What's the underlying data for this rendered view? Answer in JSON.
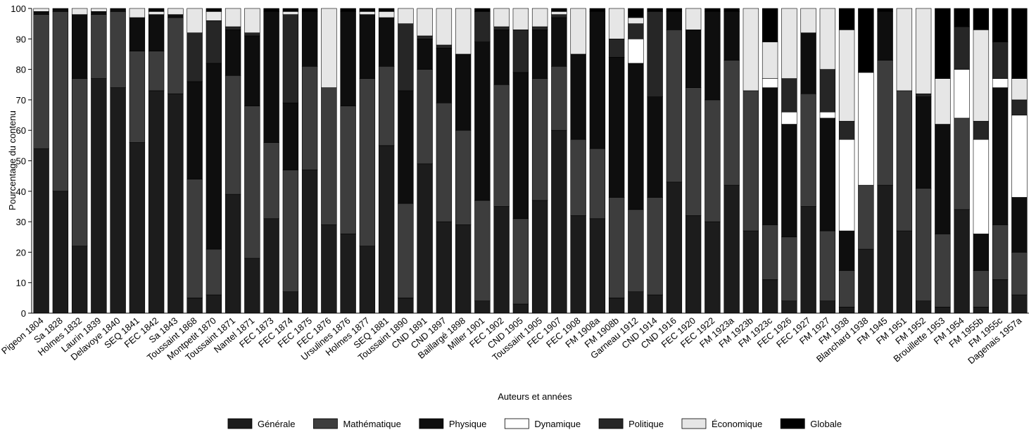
{
  "chart_data": {
    "type": "stacked_bar",
    "y_label": "Pourcentage du contenu",
    "x_label": "Auteurs et années",
    "categories": [
      "Pigeon 1804",
      "Sa 1828",
      "Holmes 1832",
      "Laurin 1839",
      "Delavoye 1840",
      "SEQ 1841",
      "FEC 1842",
      "Sa 1843",
      "Toussaint 1868",
      "Montpetit 1870",
      "Toussaint 1871",
      "Nantel 1871",
      "FEC 1873",
      "FEC 1874",
      "FEC 1875",
      "FEC 1876",
      "Ursulines 1876",
      "Holmes 1877",
      "SEQ 1881",
      "Toussaint 1890",
      "CND 1891",
      "CND 1897",
      "Baillargé 1898",
      "Miller 1901",
      "FEC 1902",
      "CND 1905",
      "Toussaint 1905",
      "FEC 1907",
      "FEC 1908",
      "FM 1908a",
      "FM 1908b",
      "Garneau 1912",
      "CND 1914",
      "CND 1916",
      "FEC 1920",
      "FEC 1922",
      "FM 1923a",
      "FM 1923b",
      "FM 1923c",
      "FEC 1926",
      "FEC 1927",
      "FM 1927",
      "FM 1938",
      "Blanchard 1938",
      "FM 1945",
      "FM 1951",
      "FM 1952",
      "Brouillette 1953",
      "FM 1954",
      "FM 1955b",
      "FM 1955c",
      "Dagenais 1957a"
    ],
    "series": [
      {
        "name": "Générale",
        "color": "#1c1c1c",
        "values": [
          54,
          40,
          22,
          77,
          74,
          56,
          73,
          72,
          5,
          6,
          39,
          18,
          31,
          7,
          47,
          29,
          26,
          22,
          55,
          5,
          49,
          30,
          29,
          4,
          35,
          3,
          37,
          60,
          32,
          31,
          5,
          7,
          6,
          43,
          32,
          30,
          42,
          27,
          11,
          4,
          35,
          4,
          2,
          21,
          42,
          27,
          4,
          2,
          34,
          2,
          11,
          6
        ]
      },
      {
        "name": "Mathématique",
        "color": "#3d3d3d",
        "values": [
          44,
          59,
          55,
          21,
          25,
          30,
          13,
          25,
          39,
          15,
          39,
          50,
          25,
          40,
          34,
          45,
          42,
          55,
          26,
          31,
          31,
          39,
          31,
          33,
          40,
          28,
          40,
          21,
          25,
          23,
          33,
          27,
          32,
          50,
          42,
          40,
          41,
          46,
          18,
          21,
          37,
          23,
          12,
          21,
          41,
          46,
          37,
          24,
          30,
          12,
          18,
          14
        ]
      },
      {
        "name": "Physique",
        "color": "#0e0e0e",
        "values": [
          1,
          1,
          21,
          1,
          1,
          11,
          12,
          1,
          32,
          61,
          15,
          23,
          43,
          22,
          18,
          0,
          31,
          21,
          16,
          37,
          10,
          18,
          25,
          52,
          18,
          48,
          16,
          16,
          28,
          45,
          46,
          48,
          33,
          6,
          19,
          29,
          16,
          0,
          45,
          37,
          20,
          37,
          13,
          0,
          16,
          0,
          30,
          36,
          0,
          12,
          45,
          18
        ]
      },
      {
        "name": "Dynamique",
        "color": "#ffffff",
        "values": [
          0,
          0,
          0,
          0,
          0,
          0,
          0,
          0,
          0,
          0,
          0,
          0,
          0,
          0,
          0,
          0,
          0,
          0,
          0,
          0,
          0,
          0,
          0,
          0,
          0,
          0,
          0,
          0,
          0,
          0,
          0,
          8,
          0,
          0,
          0,
          0,
          0,
          0,
          3,
          4,
          0,
          2,
          30,
          37,
          0,
          0,
          0,
          0,
          16,
          31,
          3,
          27
        ]
      },
      {
        "name": "Politique",
        "color": "#262626",
        "values": [
          0,
          0,
          0,
          0,
          0,
          0,
          0,
          0,
          16,
          14,
          1,
          1,
          0,
          29,
          0,
          0,
          0,
          0,
          0,
          22,
          1,
          1,
          0,
          10,
          1,
          14,
          1,
          1,
          0,
          0,
          6,
          5,
          28,
          0,
          0,
          0,
          0,
          0,
          0,
          11,
          0,
          14,
          6,
          0,
          0,
          0,
          1,
          0,
          14,
          6,
          12,
          5
        ]
      },
      {
        "name": "Économique",
        "color": "#e6e6e6",
        "values": [
          1,
          0,
          2,
          1,
          0,
          3,
          1,
          2,
          8,
          3,
          6,
          8,
          0,
          1,
          0,
          26,
          0,
          1,
          2,
          5,
          9,
          12,
          15,
          0,
          6,
          7,
          6,
          1,
          15,
          0,
          10,
          2,
          0,
          0,
          7,
          0,
          0,
          27,
          12,
          23,
          8,
          20,
          30,
          0,
          0,
          27,
          28,
          15,
          0,
          30,
          0,
          7
        ]
      },
      {
        "name": "Globale",
        "color": "#000000",
        "values": [
          0,
          0,
          0,
          0,
          0,
          0,
          1,
          0,
          0,
          1,
          0,
          0,
          1,
          1,
          1,
          0,
          1,
          1,
          1,
          0,
          0,
          0,
          0,
          1,
          0,
          0,
          0,
          1,
          0,
          1,
          0,
          3,
          1,
          1,
          0,
          1,
          1,
          0,
          11,
          0,
          0,
          0,
          7,
          21,
          1,
          0,
          0,
          23,
          6,
          7,
          11,
          23
        ]
      }
    ],
    "ylim": [
      0,
      100
    ],
    "yticks": [
      0,
      10,
      20,
      30,
      40,
      50,
      60,
      70,
      80,
      90,
      100
    ]
  }
}
